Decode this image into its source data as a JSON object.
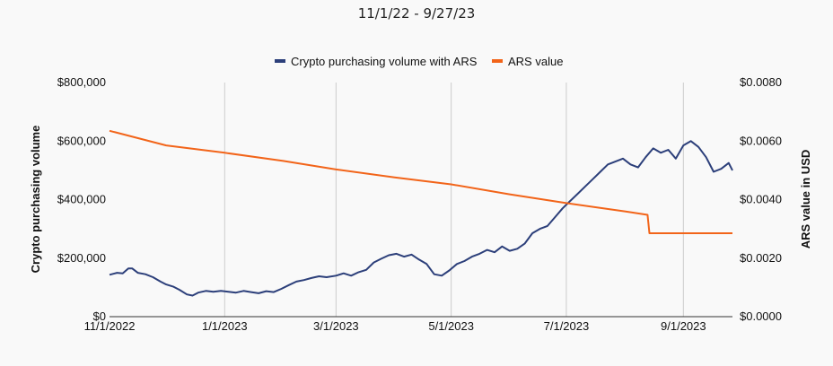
{
  "chart_data": {
    "type": "line",
    "subtitle": "11/1/22 - 9/27/23",
    "x_tick_labels": [
      "11/1/2022",
      "1/1/2023",
      "3/1/2023",
      "5/1/2023",
      "7/1/2023",
      "9/1/2023"
    ],
    "x_tick_dates": [
      "2022-11-01",
      "2023-01-01",
      "2023-03-01",
      "2023-05-01",
      "2023-07-01",
      "2023-09-01"
    ],
    "xlim": [
      "2022-11-01",
      "2023-09-27"
    ],
    "left_axis": {
      "label": "Crypto purchasing volume",
      "ylim": [
        0,
        800000
      ],
      "tick_labels": [
        "$0",
        "$200,000",
        "$400,000",
        "$600,000",
        "$800,000"
      ],
      "tick_values": [
        0,
        200000,
        400000,
        600000,
        800000
      ]
    },
    "right_axis": {
      "label": "ARS value in USD",
      "ylim": [
        0,
        0.008
      ],
      "tick_labels": [
        "$0.0000",
        "$0.0020",
        "$0.0040",
        "$0.0060",
        "$0.0080"
      ],
      "tick_values": [
        0,
        0.002,
        0.004,
        0.006,
        0.008
      ]
    },
    "grid": "vertical",
    "legend_position": "top",
    "series": [
      {
        "name": "Crypto purchasing volume with ARS",
        "axis": "left",
        "color": "#2c3f7a",
        "points": [
          [
            "2022-11-01",
            143000
          ],
          [
            "2022-11-05",
            150000
          ],
          [
            "2022-11-08",
            148000
          ],
          [
            "2022-11-11",
            165000
          ],
          [
            "2022-11-13",
            165000
          ],
          [
            "2022-11-16",
            150000
          ],
          [
            "2022-11-20",
            145000
          ],
          [
            "2022-11-24",
            135000
          ],
          [
            "2022-11-28",
            120000
          ],
          [
            "2022-12-01",
            110000
          ],
          [
            "2022-12-05",
            102000
          ],
          [
            "2022-12-08",
            92000
          ],
          [
            "2022-12-12",
            76000
          ],
          [
            "2022-12-15",
            72000
          ],
          [
            "2022-12-18",
            82000
          ],
          [
            "2022-12-22",
            88000
          ],
          [
            "2022-12-26",
            85000
          ],
          [
            "2022-12-30",
            88000
          ],
          [
            "2023-01-03",
            85000
          ],
          [
            "2023-01-07",
            82000
          ],
          [
            "2023-01-11",
            88000
          ],
          [
            "2023-01-15",
            84000
          ],
          [
            "2023-01-19",
            80000
          ],
          [
            "2023-01-23",
            87000
          ],
          [
            "2023-01-27",
            84000
          ],
          [
            "2023-01-31",
            95000
          ],
          [
            "2023-02-04",
            108000
          ],
          [
            "2023-02-08",
            120000
          ],
          [
            "2023-02-12",
            125000
          ],
          [
            "2023-02-16",
            132000
          ],
          [
            "2023-02-20",
            138000
          ],
          [
            "2023-02-24",
            135000
          ],
          [
            "2023-03-01",
            140000
          ],
          [
            "2023-03-05",
            148000
          ],
          [
            "2023-03-09",
            140000
          ],
          [
            "2023-03-13",
            152000
          ],
          [
            "2023-03-17",
            160000
          ],
          [
            "2023-03-21",
            185000
          ],
          [
            "2023-03-25",
            198000
          ],
          [
            "2023-03-29",
            210000
          ],
          [
            "2023-04-02",
            215000
          ],
          [
            "2023-04-06",
            205000
          ],
          [
            "2023-04-10",
            212000
          ],
          [
            "2023-04-14",
            195000
          ],
          [
            "2023-04-18",
            180000
          ],
          [
            "2023-04-22",
            145000
          ],
          [
            "2023-04-26",
            140000
          ],
          [
            "2023-04-30",
            158000
          ],
          [
            "2023-05-04",
            180000
          ],
          [
            "2023-05-08",
            190000
          ],
          [
            "2023-05-12",
            205000
          ],
          [
            "2023-05-16",
            215000
          ],
          [
            "2023-05-20",
            228000
          ],
          [
            "2023-05-24",
            220000
          ],
          [
            "2023-05-28",
            240000
          ],
          [
            "2023-06-01",
            225000
          ],
          [
            "2023-06-05",
            232000
          ],
          [
            "2023-06-09",
            250000
          ],
          [
            "2023-06-13",
            285000
          ],
          [
            "2023-06-17",
            300000
          ],
          [
            "2023-06-21",
            310000
          ],
          [
            "2023-06-25",
            340000
          ],
          [
            "2023-06-29",
            370000
          ],
          [
            "2023-07-03",
            395000
          ],
          [
            "2023-07-07",
            420000
          ],
          [
            "2023-07-11",
            445000
          ],
          [
            "2023-07-15",
            470000
          ],
          [
            "2023-07-19",
            495000
          ],
          [
            "2023-07-23",
            520000
          ],
          [
            "2023-07-27",
            530000
          ],
          [
            "2023-07-31",
            540000
          ],
          [
            "2023-08-04",
            520000
          ],
          [
            "2023-08-08",
            510000
          ],
          [
            "2023-08-12",
            545000
          ],
          [
            "2023-08-16",
            575000
          ],
          [
            "2023-08-20",
            560000
          ],
          [
            "2023-08-24",
            570000
          ],
          [
            "2023-08-28",
            540000
          ],
          [
            "2023-09-01",
            585000
          ],
          [
            "2023-09-05",
            600000
          ],
          [
            "2023-09-09",
            580000
          ],
          [
            "2023-09-13",
            545000
          ],
          [
            "2023-09-17",
            495000
          ],
          [
            "2023-09-21",
            505000
          ],
          [
            "2023-09-25",
            525000
          ],
          [
            "2023-09-27",
            500000
          ]
        ]
      },
      {
        "name": "ARS value",
        "axis": "right",
        "color": "#f26419",
        "points": [
          [
            "2022-11-01",
            0.00635
          ],
          [
            "2022-12-01",
            0.00585
          ],
          [
            "2023-01-01",
            0.0056
          ],
          [
            "2023-02-01",
            0.00532
          ],
          [
            "2023-03-01",
            0.00503
          ],
          [
            "2023-04-01",
            0.00476
          ],
          [
            "2023-05-01",
            0.00452
          ],
          [
            "2023-06-01",
            0.00418
          ],
          [
            "2023-07-01",
            0.00388
          ],
          [
            "2023-08-01",
            0.0036
          ],
          [
            "2023-08-13",
            0.00348
          ],
          [
            "2023-08-14",
            0.00285
          ],
          [
            "2023-09-27",
            0.00285
          ]
        ]
      }
    ]
  }
}
